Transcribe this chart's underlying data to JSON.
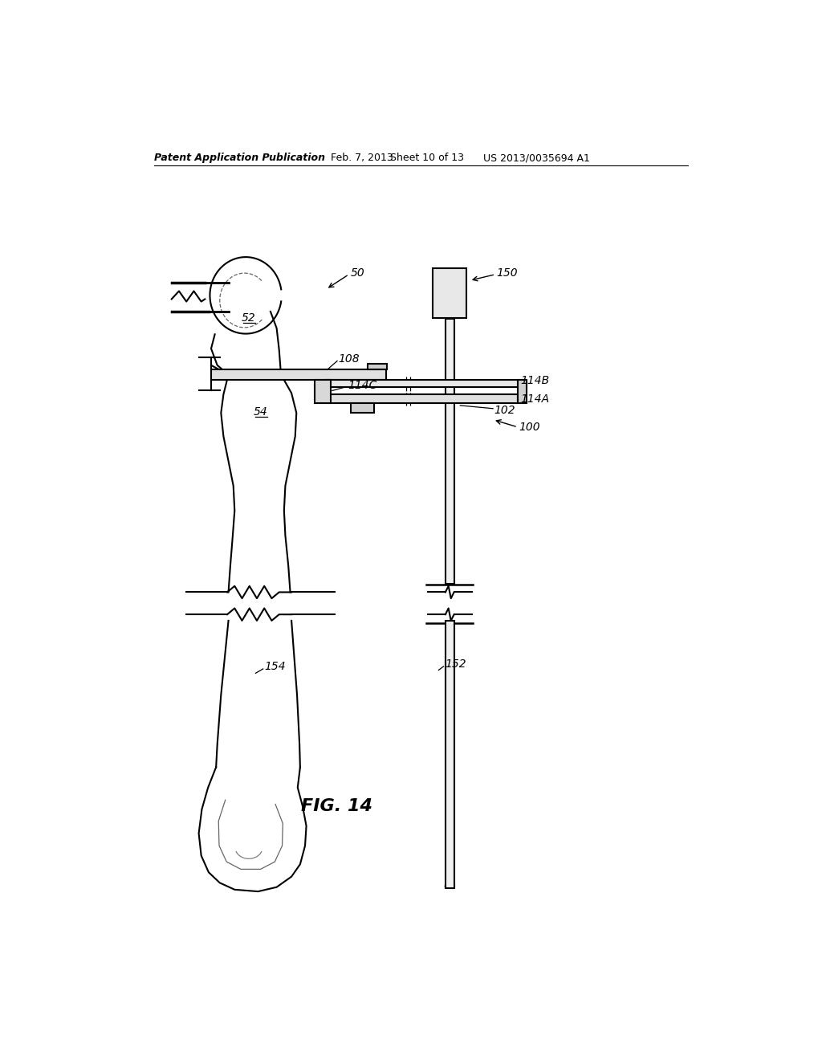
{
  "bg_color": "#ffffff",
  "line_color": "#000000",
  "header_left": "Patent Application Publication",
  "header_date": "Feb. 7, 2013",
  "header_sheet": "Sheet 10 of 13",
  "header_patent": "US 2013/0035694 A1",
  "fig_label": "FIG. 14"
}
